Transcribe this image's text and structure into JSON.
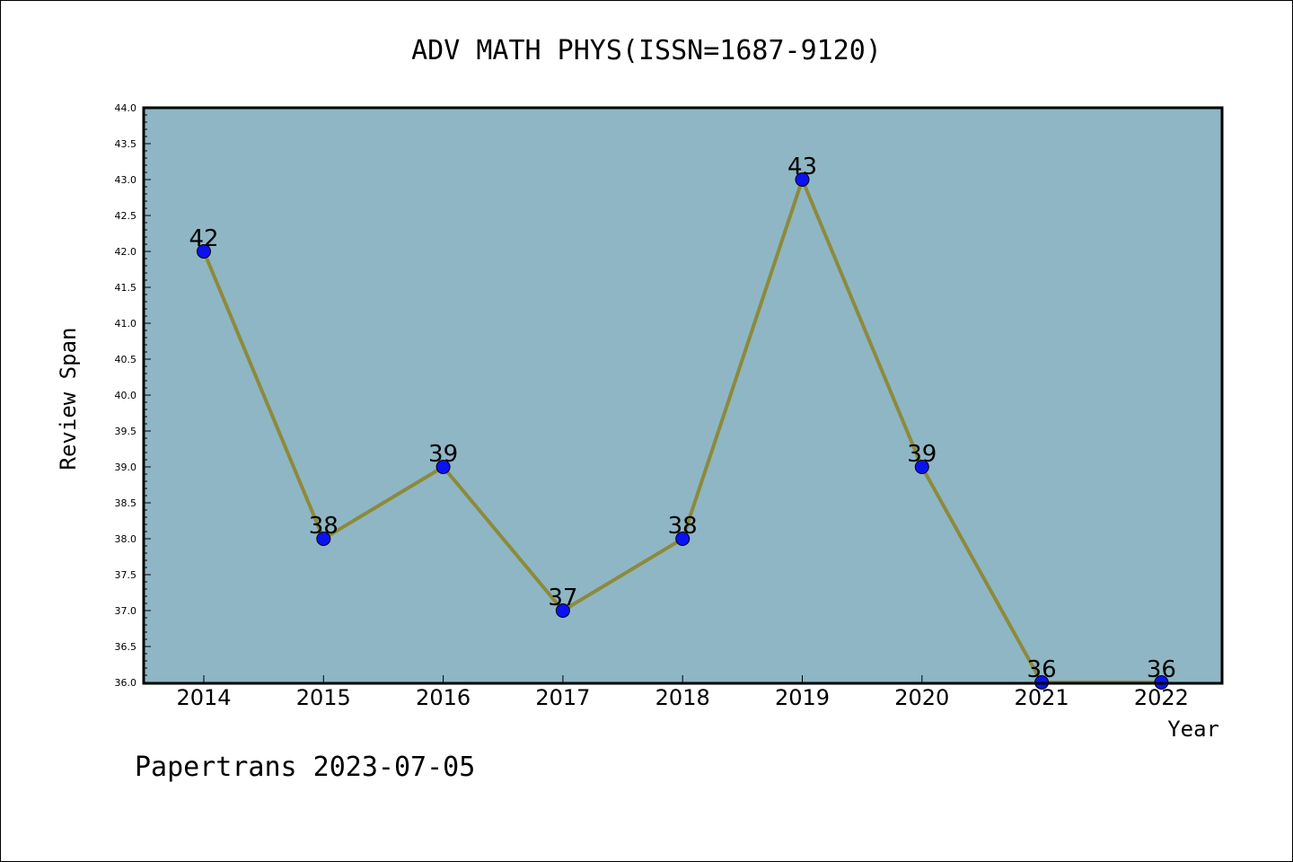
{
  "chart_data": {
    "type": "line",
    "title": "ADV MATH PHYS(ISSN=1687-9120)",
    "xlabel": "Year",
    "ylabel": "Review Span",
    "categories": [
      "2014",
      "2015",
      "2016",
      "2017",
      "2018",
      "2019",
      "2020",
      "2021",
      "2022"
    ],
    "values": [
      42,
      38,
      39,
      37,
      38,
      43,
      39,
      36,
      36
    ],
    "data_labels": [
      "42",
      "38",
      "39",
      "37",
      "38",
      "43",
      "39",
      "36",
      "36"
    ],
    "ylim": [
      36.0,
      44.0
    ],
    "yticks": [
      "36.0",
      "36.5",
      "37.0",
      "37.5",
      "38.0",
      "38.5",
      "39.0",
      "39.5",
      "40.0",
      "40.5",
      "41.0",
      "41.5",
      "42.0",
      "42.5",
      "43.0",
      "43.5",
      "44.0"
    ],
    "grid": false,
    "legend": "none",
    "colors": {
      "plot_background": "#8fb6c4",
      "line": "#8c8a3c",
      "marker": "#0a12f0"
    }
  },
  "footer": {
    "text": "Papertrans 2023-07-05"
  }
}
